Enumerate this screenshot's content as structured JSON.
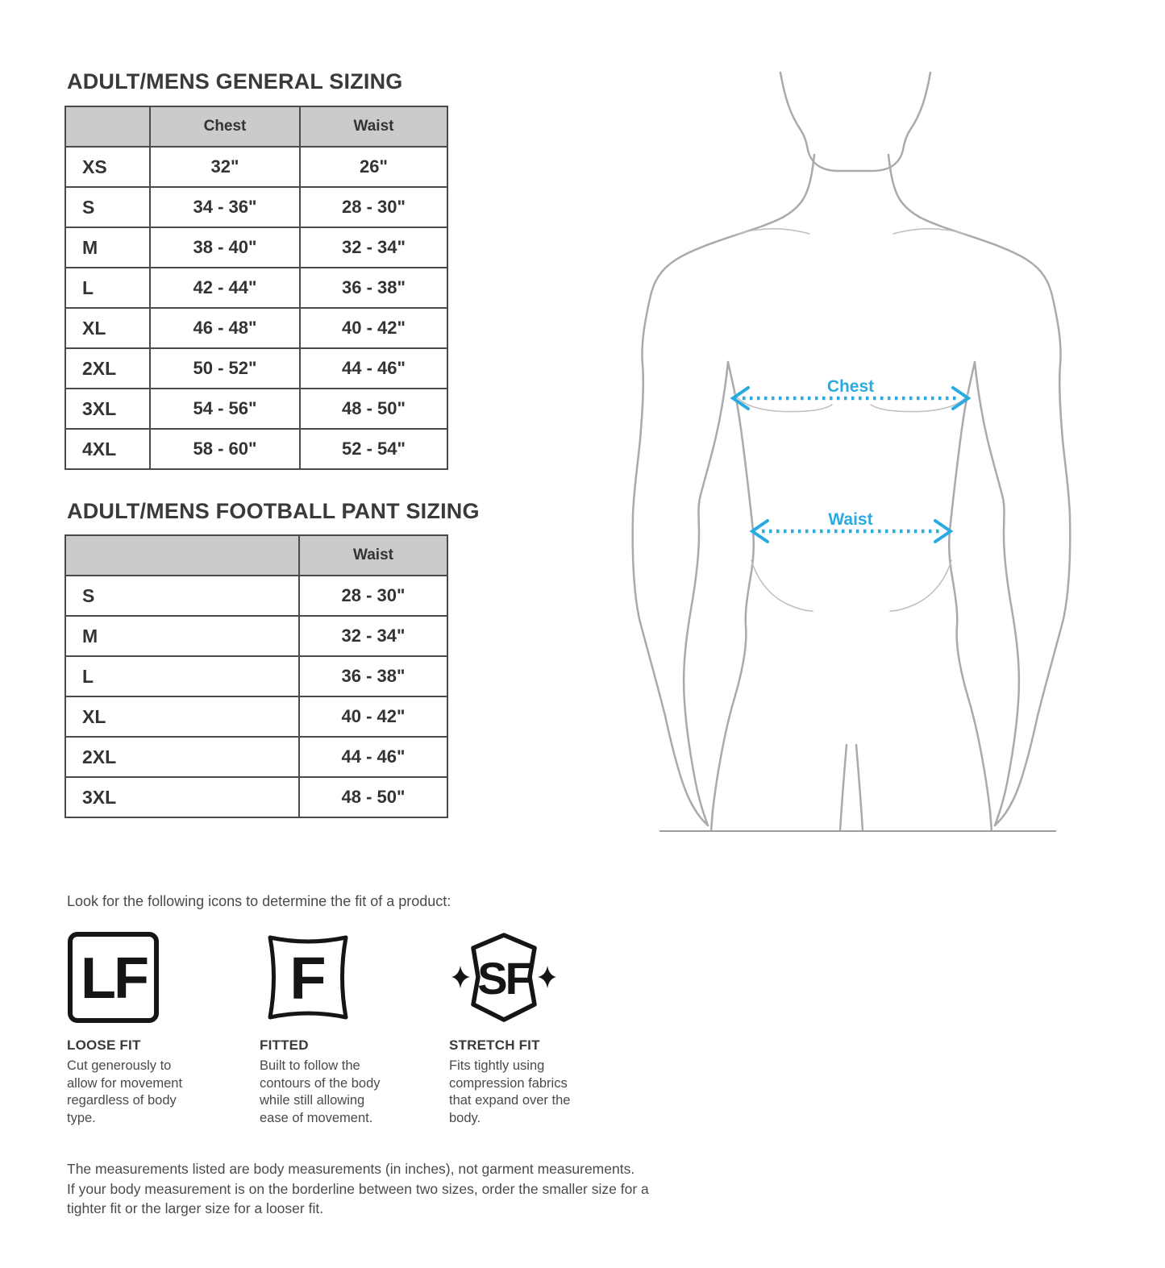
{
  "colors": {
    "accent_blue": "#29abe2",
    "body_outline_gray": "#a8aaad",
    "table_header_bg": "#cbcbcb",
    "table_border": "#4a4a4a",
    "heading_text": "#3a3a3a"
  },
  "general_sizing": {
    "title": "ADULT/MENS GENERAL SIZING",
    "columns": [
      "",
      "Chest",
      "Waist"
    ],
    "rows": [
      [
        "XS",
        "32\"",
        "26\""
      ],
      [
        "S",
        "34 - 36\"",
        "28 - 30\""
      ],
      [
        "M",
        "38 - 40\"",
        "32 - 34\""
      ],
      [
        "L",
        "42 - 44\"",
        "36 - 38\""
      ],
      [
        "XL",
        "46 - 48\"",
        "40 - 42\""
      ],
      [
        "2XL",
        "50 - 52\"",
        "44 - 46\""
      ],
      [
        "3XL",
        "54 - 56\"",
        "48 - 50\""
      ],
      [
        "4XL",
        "58 - 60\"",
        "52 - 54\""
      ]
    ]
  },
  "football_pant_sizing": {
    "title": "ADULT/MENS FOOTBALL PANT SIZING",
    "columns": [
      "",
      "Waist"
    ],
    "rows": [
      [
        "S",
        "28 - 30\""
      ],
      [
        "M",
        "32 - 34\""
      ],
      [
        "L",
        "36 - 38\""
      ],
      [
        "XL",
        "40 - 42\""
      ],
      [
        "2XL",
        "44 - 46\""
      ],
      [
        "3XL",
        "48 - 50\""
      ]
    ]
  },
  "diagram": {
    "chest_label": "Chest",
    "waist_label": "Waist"
  },
  "fit_section": {
    "intro": "Look for the following icons to determine the fit of a product:",
    "fits": [
      {
        "icon_letters": "LF",
        "icon_shape": "loose-fit-rounded-square",
        "label": "LOOSE FIT",
        "description": "Cut generously to\nallow for movement\nregardless of body\ntype."
      },
      {
        "icon_letters": "F",
        "icon_shape": "fitted-pinched-square",
        "label": "FITTED",
        "description": "Built to follow the\ncontours of the body\nwhile still allowing\nease of movement."
      },
      {
        "icon_letters": "SF",
        "icon_shape": "stretch-fit-shield-with-diamonds",
        "label": "STRETCH FIT",
        "description": "Fits tightly using\ncompression fabrics\nthat expand over the\nbody."
      }
    ]
  },
  "footer": {
    "note": "The measurements listed are body measurements (in inches), not garment measurements.\nIf your body measurement is on the borderline between two sizes, order the smaller size for a\ntighter fit or the larger size for a looser fit."
  }
}
